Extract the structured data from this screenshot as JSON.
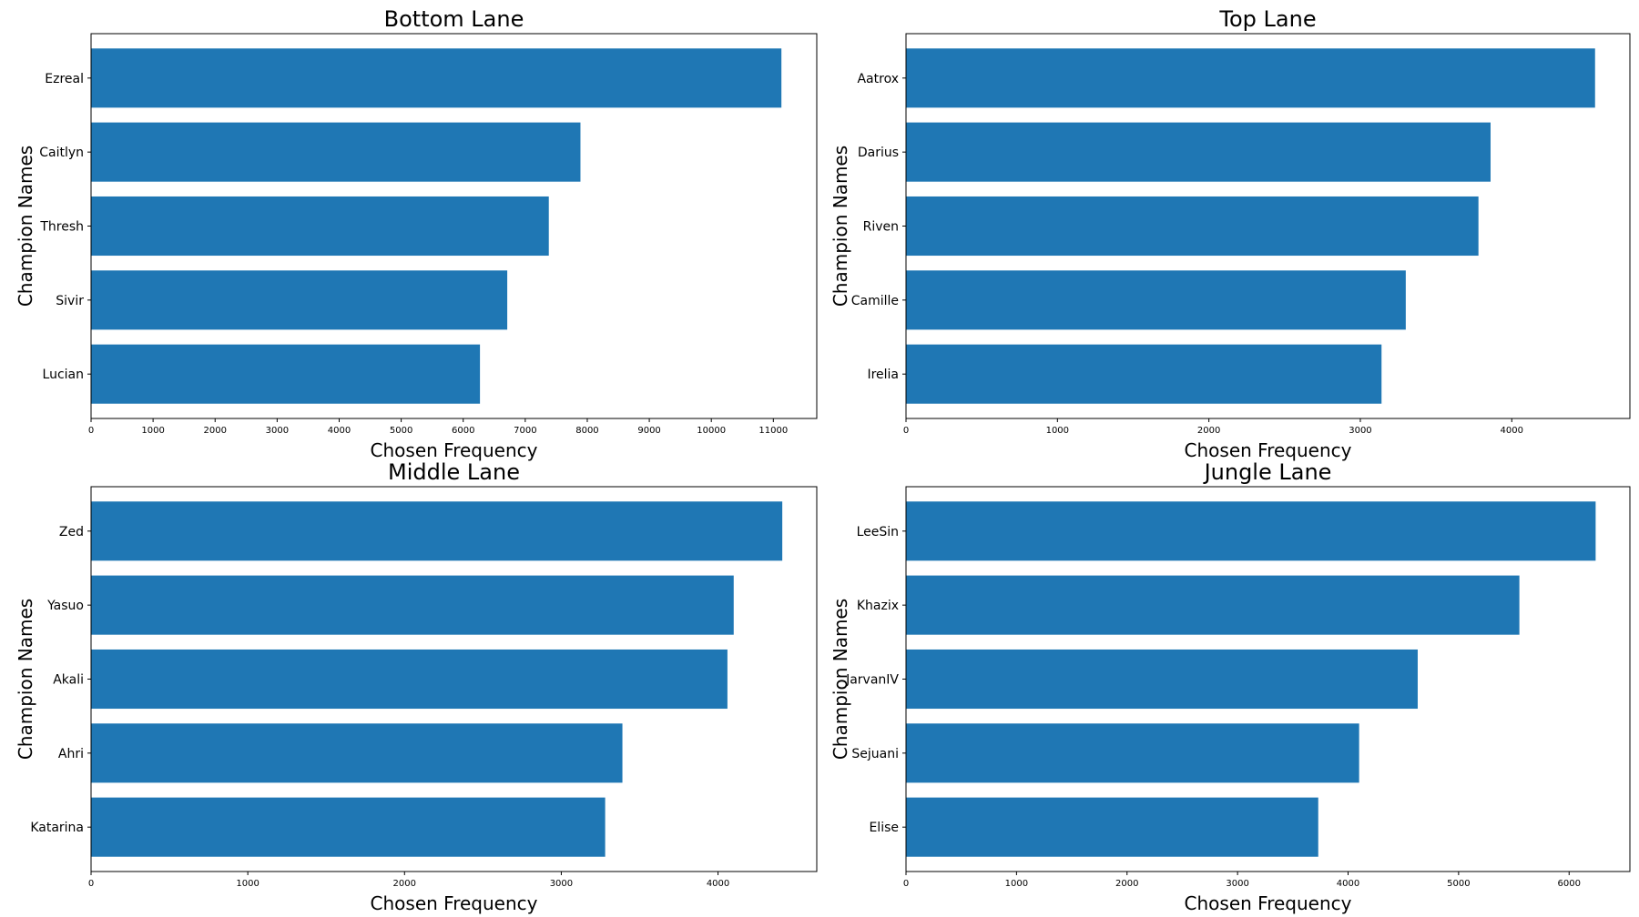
{
  "chart_data": [
    {
      "type": "bar",
      "orientation": "horizontal",
      "title": "Bottom Lane",
      "xlabel": "Chosen Frequency",
      "ylabel": "Champion Names",
      "categories": [
        "Ezreal",
        "Caitlyn",
        "Thresh",
        "Sivir",
        "Lucian"
      ],
      "values": [
        11130,
        7890,
        7380,
        6710,
        6270
      ],
      "xlim": [
        0,
        11700
      ],
      "xticks": [
        0,
        1000,
        2000,
        3000,
        4000,
        5000,
        6000,
        7000,
        8000,
        9000,
        10000,
        11000
      ],
      "color": "#1f77b4",
      "grid": false
    },
    {
      "type": "bar",
      "orientation": "horizontal",
      "title": "Top Lane",
      "xlabel": "Chosen Frequency",
      "ylabel": "Champion Names",
      "categories": [
        "Aatrox",
        "Darius",
        "Riven",
        "Camille",
        "Irelia"
      ],
      "values": [
        4550,
        3860,
        3780,
        3300,
        3140
      ],
      "xlim": [
        0,
        4780
      ],
      "xticks": [
        0,
        1000,
        2000,
        3000,
        4000
      ],
      "color": "#1f77b4",
      "grid": false
    },
    {
      "type": "bar",
      "orientation": "horizontal",
      "title": "Middle Lane",
      "xlabel": "Chosen Frequency",
      "ylabel": "Champion Names",
      "categories": [
        "Zed",
        "Yasuo",
        "Akali",
        "Ahri",
        "Katarina"
      ],
      "values": [
        4410,
        4100,
        4060,
        3390,
        3280
      ],
      "xlim": [
        0,
        4630
      ],
      "xticks": [
        0,
        1000,
        2000,
        3000,
        4000
      ],
      "color": "#1f77b4",
      "grid": false
    },
    {
      "type": "bar",
      "orientation": "horizontal",
      "title": "Jungle Lane",
      "xlabel": "Chosen Frequency",
      "ylabel": "Champion Names",
      "categories": [
        "LeeSin",
        "Khazix",
        "JarvanIV",
        "Sejuani",
        "Elise"
      ],
      "values": [
        6240,
        5550,
        4630,
        4100,
        3730
      ],
      "xlim": [
        0,
        6550
      ],
      "xticks": [
        0,
        1000,
        2000,
        3000,
        4000,
        5000,
        6000
      ],
      "color": "#1f77b4",
      "grid": false
    }
  ]
}
